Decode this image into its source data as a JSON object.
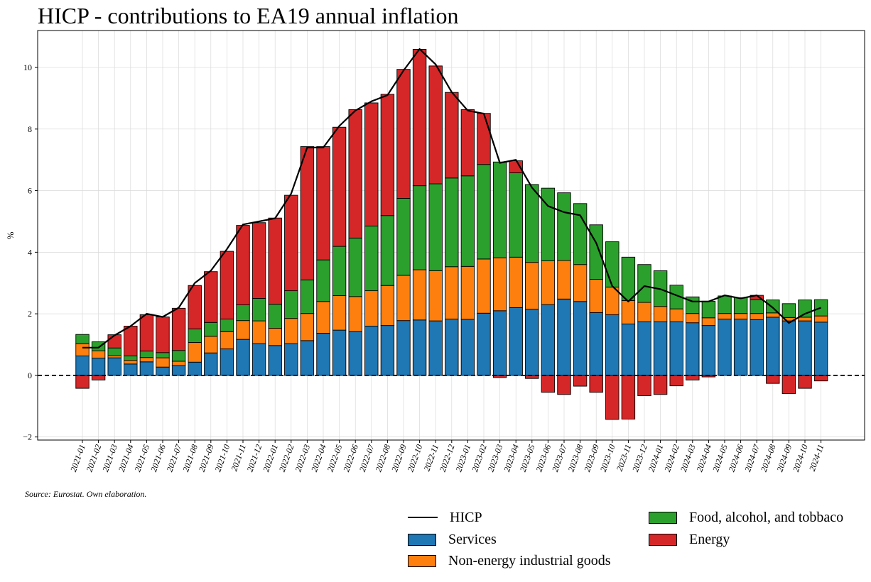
{
  "chart_data": {
    "type": "bar",
    "stacked": true,
    "title": "HICP - contributions to EA19 annual inflation",
    "xlabel": "",
    "ylabel": "%",
    "ylim": [
      -2.1,
      11.2
    ],
    "yticks": [
      -2,
      0,
      2,
      4,
      6,
      8,
      10
    ],
    "ytick_labels": [
      "−2",
      "0",
      "2",
      "4",
      "6",
      "8",
      "10"
    ],
    "grid": true,
    "zero_line": "dashed",
    "legend_position": "bottom-right",
    "categories": [
      "2021-01",
      "2021-02",
      "2021-03",
      "2021-04",
      "2021-05",
      "2021-06",
      "2021-07",
      "2021-08",
      "2021-09",
      "2021-10",
      "2021-11",
      "2021-12",
      "2022-01",
      "2022-02",
      "2022-03",
      "2022-04",
      "2022-05",
      "2022-06",
      "2022-07",
      "2022-08",
      "2022-09",
      "2022-10",
      "2022-11",
      "2022-12",
      "2023-01",
      "2023-02",
      "2023-03",
      "2023-04",
      "2023-05",
      "2023-06",
      "2023-07",
      "2023-08",
      "2023-09",
      "2023-10",
      "2023-11",
      "2023-12",
      "2024-01",
      "2024-02",
      "2024-03",
      "2024-04",
      "2024-05",
      "2024-06",
      "2024-07",
      "2024-08",
      "2024-09",
      "2024-10",
      "2024-11"
    ],
    "series": [
      {
        "name": "Services",
        "color": "#1f77b4",
        "values": [
          0.63,
          0.56,
          0.57,
          0.37,
          0.44,
          0.27,
          0.32,
          0.43,
          0.73,
          0.86,
          1.17,
          1.03,
          0.97,
          1.03,
          1.13,
          1.37,
          1.47,
          1.42,
          1.6,
          1.62,
          1.78,
          1.8,
          1.77,
          1.83,
          1.82,
          2.02,
          2.1,
          2.2,
          2.15,
          2.3,
          2.48,
          2.4,
          2.04,
          1.97,
          1.67,
          1.74,
          1.74,
          1.74,
          1.71,
          1.62,
          1.83,
          1.83,
          1.81,
          1.89,
          1.77,
          1.77,
          1.73
        ]
      },
      {
        "name": "Non-energy industrial goods",
        "color": "#ff7f0e",
        "values": [
          0.4,
          0.24,
          0.07,
          0.12,
          0.14,
          0.3,
          0.14,
          0.64,
          0.54,
          0.56,
          0.61,
          0.74,
          0.56,
          0.82,
          0.88,
          1.03,
          1.12,
          1.14,
          1.15,
          1.3,
          1.47,
          1.63,
          1.63,
          1.7,
          1.72,
          1.76,
          1.72,
          1.64,
          1.52,
          1.42,
          1.25,
          1.2,
          1.08,
          0.9,
          0.76,
          0.63,
          0.5,
          0.42,
          0.3,
          0.25,
          0.18,
          0.18,
          0.2,
          0.14,
          0.11,
          0.12,
          0.2
        ]
      },
      {
        "name": "Food, alcohol, and tobbaco",
        "color": "#2ca02c",
        "values": [
          0.3,
          0.29,
          0.25,
          0.14,
          0.21,
          0.17,
          0.35,
          0.44,
          0.45,
          0.41,
          0.51,
          0.73,
          0.78,
          0.9,
          1.09,
          1.35,
          1.6,
          1.9,
          2.1,
          2.27,
          2.5,
          2.73,
          2.82,
          2.88,
          2.94,
          3.07,
          3.11,
          2.74,
          2.53,
          2.36,
          2.2,
          1.98,
          1.77,
          1.47,
          1.41,
          1.23,
          1.16,
          0.77,
          0.54,
          0.54,
          0.57,
          0.51,
          0.45,
          0.42,
          0.45,
          0.56,
          0.53
        ]
      },
      {
        "name": "Energy",
        "color": "#d62728",
        "values": [
          -0.42,
          -0.15,
          0.43,
          0.97,
          1.18,
          1.16,
          1.37,
          1.41,
          1.65,
          2.2,
          2.58,
          2.46,
          2.8,
          3.1,
          4.33,
          3.68,
          3.87,
          4.17,
          4.0,
          3.94,
          4.19,
          4.43,
          3.83,
          2.78,
          2.15,
          1.66,
          -0.07,
          0.39,
          -0.1,
          -0.55,
          -0.62,
          -0.35,
          -0.55,
          -1.43,
          -1.42,
          -0.66,
          -0.62,
          -0.34,
          -0.15,
          -0.05,
          0.0,
          0.0,
          0.14,
          -0.26,
          -0.59,
          -0.42,
          -0.18
        ]
      },
      {
        "name": "HICP",
        "color": "#000000",
        "type": "line",
        "values": [
          0.9,
          0.9,
          1.3,
          1.6,
          2.0,
          1.9,
          2.2,
          3.0,
          3.4,
          4.1,
          4.9,
          5.0,
          5.1,
          5.9,
          7.4,
          7.4,
          8.1,
          8.6,
          8.9,
          9.1,
          9.9,
          10.6,
          10.1,
          9.2,
          8.6,
          8.5,
          6.9,
          7.0,
          6.1,
          5.5,
          5.3,
          5.2,
          4.3,
          2.9,
          2.4,
          2.9,
          2.8,
          2.6,
          2.4,
          2.4,
          2.6,
          2.5,
          2.6,
          2.2,
          1.7,
          2.0,
          2.2
        ]
      }
    ]
  },
  "source_note": "Source: Eurostat. Own elaboration.",
  "legend": {
    "hicp": "HICP",
    "services": "Services",
    "neig": "Non-energy industrial goods",
    "food": "Food, alcohol, and tobbaco",
    "energy": "Energy"
  },
  "colors": {
    "services": "#1f77b4",
    "neig": "#ff7f0e",
    "food": "#2ca02c",
    "energy": "#d62728",
    "hicp": "#000000"
  }
}
